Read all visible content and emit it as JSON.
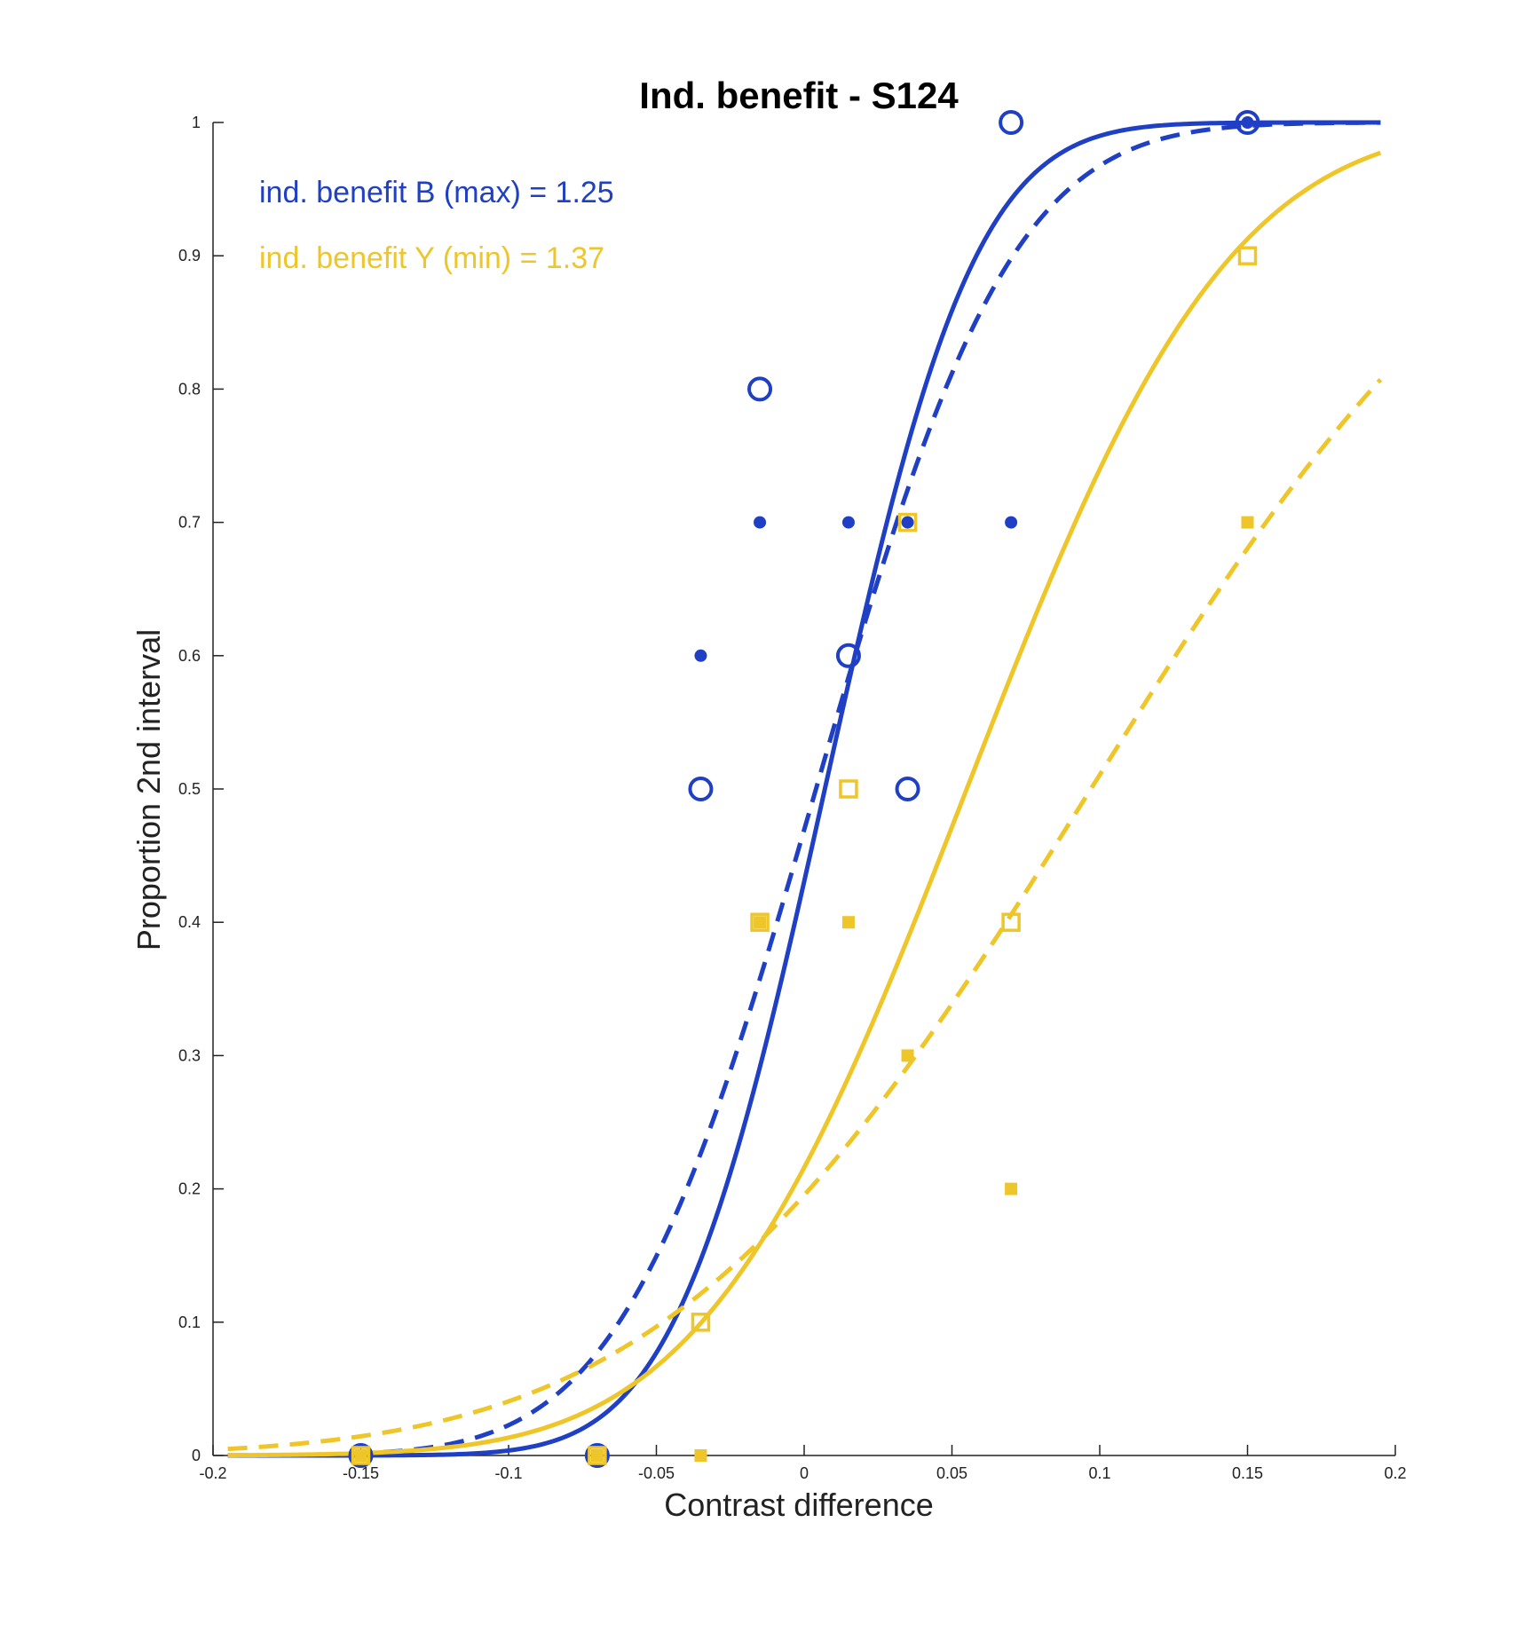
{
  "chart_data": {
    "type": "scatter",
    "title": "Ind. benefit - S124",
    "xlabel": "Contrast difference",
    "ylabel": "Proportion 2nd interval",
    "xlim": [
      -0.2,
      0.2
    ],
    "ylim": [
      0,
      1
    ],
    "xticks": [
      "-0.2",
      "-0.15",
      "-0.1",
      "-0.05",
      "0",
      "0.05",
      "0.1",
      "0.15",
      "0.2"
    ],
    "yticks": [
      "0",
      "0.1",
      "0.2",
      "0.3",
      "0.4",
      "0.5",
      "0.6",
      "0.7",
      "0.8",
      "0.9",
      "1"
    ],
    "grid": false,
    "colors": {
      "blue": "#1f3fc4",
      "yellow": "#efc62a"
    },
    "annotations": [
      {
        "text": "ind. benefit B (max) = 1.25",
        "color": "#1f3fc4"
      },
      {
        "text": "ind. benefit Y (min) = 1.37",
        "color": "#efc62a"
      }
    ],
    "series": [
      {
        "marker": "open-circle",
        "color": "#1f3fc4",
        "points": [
          [
            -0.15,
            0.0
          ],
          [
            -0.07,
            0.0
          ],
          [
            -0.035,
            0.5
          ],
          [
            -0.015,
            0.8
          ],
          [
            0.015,
            0.6
          ],
          [
            0.035,
            0.5
          ],
          [
            0.07,
            1.0
          ],
          [
            0.15,
            1.0
          ]
        ]
      },
      {
        "marker": "filled-circle",
        "color": "#1f3fc4",
        "points": [
          [
            -0.15,
            0.0
          ],
          [
            -0.07,
            0.0
          ],
          [
            -0.035,
            0.6
          ],
          [
            -0.015,
            0.7
          ],
          [
            0.015,
            0.7
          ],
          [
            0.035,
            0.7
          ],
          [
            0.07,
            0.7
          ],
          [
            0.15,
            1.0
          ]
        ]
      },
      {
        "marker": "open-square",
        "color": "#efc62a",
        "points": [
          [
            -0.15,
            0.0
          ],
          [
            -0.07,
            0.0
          ],
          [
            -0.035,
            0.1
          ],
          [
            -0.015,
            0.4
          ],
          [
            0.015,
            0.5
          ],
          [
            0.035,
            0.7
          ],
          [
            0.07,
            0.4
          ],
          [
            0.15,
            0.9
          ]
        ]
      },
      {
        "marker": "filled-square",
        "color": "#efc62a",
        "points": [
          [
            -0.15,
            0.0
          ],
          [
            -0.07,
            0.0
          ],
          [
            -0.035,
            0.0
          ],
          [
            -0.015,
            0.4
          ],
          [
            0.015,
            0.4
          ],
          [
            0.035,
            0.3
          ],
          [
            0.07,
            0.2
          ],
          [
            0.15,
            0.7
          ]
        ]
      }
    ],
    "curves": [
      {
        "style": "solid",
        "color": "#1f3fc4",
        "mu": 0.007,
        "sigma": 0.04
      },
      {
        "style": "dashed",
        "color": "#1f3fc4",
        "mu": 0.004,
        "sigma": 0.052
      },
      {
        "style": "solid",
        "color": "#efc62a",
        "mu": 0.055,
        "sigma": 0.07
      },
      {
        "style": "dashed",
        "color": "#efc62a",
        "mu": 0.097,
        "sigma": 0.113
      }
    ]
  }
}
